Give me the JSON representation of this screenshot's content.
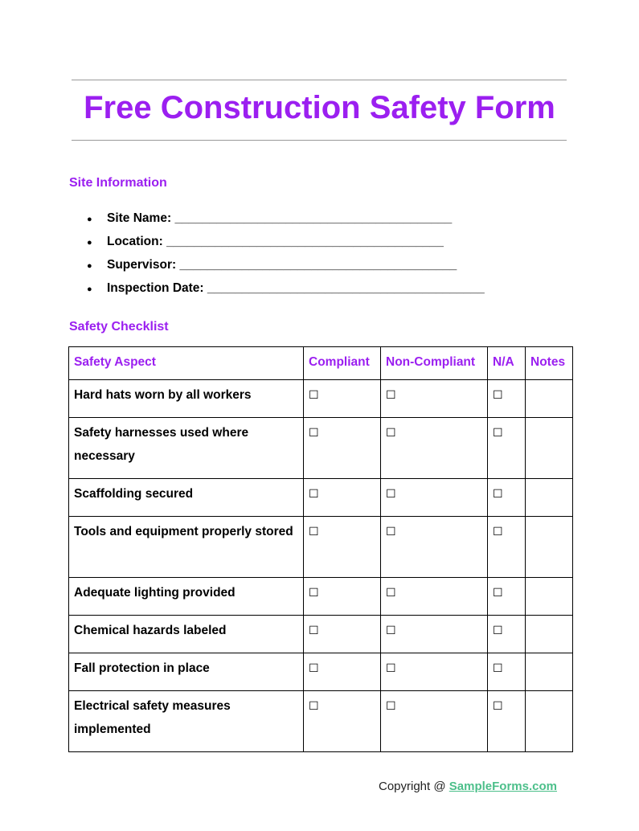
{
  "title": "Free Construction Safety Form",
  "site_info": {
    "heading": "Site Information",
    "fields": [
      {
        "label": "Site Name:",
        "blank": "________________________________________"
      },
      {
        "label": "Location:",
        "blank": "________________________________________"
      },
      {
        "label": "Supervisor:",
        "blank": "________________________________________"
      },
      {
        "label": "Inspection Date:",
        "blank": "________________________________________"
      }
    ]
  },
  "checklist": {
    "heading": "Safety Checklist",
    "columns": [
      "Safety Aspect",
      "Compliant",
      "Non-Compliant",
      "N/A",
      "Notes"
    ],
    "checkbox": "☐",
    "rows": [
      "Hard hats worn by all workers",
      "Safety harnesses used where necessary",
      "Scaffolding secured",
      "Tools and equipment properly stored",
      "Adequate lighting provided",
      "Chemical hazards labeled",
      "Fall protection in place",
      "Electrical safety measures implemented"
    ]
  },
  "footer": {
    "text": "Copyright @ ",
    "link": "SampleForms.com"
  },
  "colors": {
    "accent": "#9b1ff0",
    "link": "#4cbf8a"
  }
}
